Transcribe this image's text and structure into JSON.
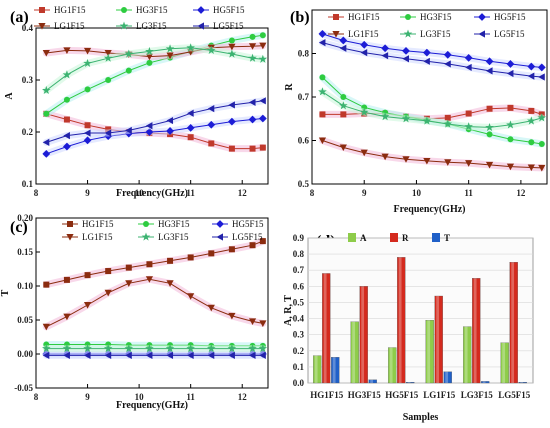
{
  "chart_data": [
    {
      "panel": "(a)",
      "type": "line",
      "xlabel": "Frequency(GHz)",
      "ylabel": "A",
      "xlim": [
        8,
        12.5
      ],
      "ylim": [
        0.1,
        0.4
      ],
      "xticks": [
        8,
        9,
        10,
        11,
        12
      ],
      "yticks": [
        0.1,
        0.2,
        0.3,
        0.4
      ],
      "ytick_labels": [
        "0.1",
        "0.2",
        "0.3",
        "0.4"
      ],
      "legend": "top",
      "series": [
        {
          "name": "HG1F15",
          "color": "#c0392b",
          "marker": "square",
          "glow": "#f3b8d8",
          "x": [
            8.2,
            8.6,
            9.0,
            9.4,
            9.8,
            10.2,
            10.6,
            11.0,
            11.4,
            11.8,
            12.2,
            12.4
          ],
          "y": [
            0.235,
            0.224,
            0.213,
            0.205,
            0.2,
            0.198,
            0.196,
            0.19,
            0.178,
            0.168,
            0.168,
            0.17
          ]
        },
        {
          "name": "HG3F15",
          "color": "#2ecc40",
          "marker": "circle",
          "glow": "#b7f0f0",
          "x": [
            8.2,
            8.6,
            9.0,
            9.4,
            9.8,
            10.2,
            10.6,
            11.0,
            11.4,
            11.8,
            12.2,
            12.4
          ],
          "y": [
            0.235,
            0.262,
            0.282,
            0.3,
            0.318,
            0.333,
            0.343,
            0.355,
            0.366,
            0.376,
            0.383,
            0.386
          ]
        },
        {
          "name": "HG5F15",
          "color": "#1c1cd6",
          "marker": "diamond",
          "glow": "#d0d8ff",
          "x": [
            8.2,
            8.6,
            9.0,
            9.4,
            9.8,
            10.2,
            10.6,
            11.0,
            11.4,
            11.8,
            12.2,
            12.4
          ],
          "y": [
            0.158,
            0.172,
            0.184,
            0.192,
            0.197,
            0.2,
            0.202,
            0.208,
            0.214,
            0.22,
            0.224,
            0.226
          ]
        },
        {
          "name": "LG1F15",
          "color": "#8b2c0f",
          "marker": "triangle-down",
          "glow": "#f3b8d8",
          "x": [
            8.2,
            8.6,
            9.0,
            9.4,
            9.8,
            10.2,
            10.6,
            11.0,
            11.4,
            11.8,
            12.2,
            12.4
          ],
          "y": [
            0.352,
            0.357,
            0.356,
            0.352,
            0.349,
            0.345,
            0.347,
            0.354,
            0.362,
            0.364,
            0.365,
            0.366
          ]
        },
        {
          "name": "LG3F15",
          "color": "#3cb371",
          "marker": "star",
          "glow": "#c8f5d8",
          "x": [
            8.2,
            8.6,
            9.0,
            9.4,
            9.8,
            10.2,
            10.6,
            11.0,
            11.4,
            11.8,
            12.2,
            12.4
          ],
          "y": [
            0.28,
            0.31,
            0.332,
            0.342,
            0.35,
            0.355,
            0.36,
            0.362,
            0.357,
            0.35,
            0.342,
            0.34
          ]
        },
        {
          "name": "LG5F15",
          "color": "#2222aa",
          "marker": "triangle-left",
          "glow": "#d0d8ff",
          "x": [
            8.2,
            8.6,
            9.0,
            9.4,
            9.8,
            10.2,
            10.6,
            11.0,
            11.4,
            11.8,
            12.2,
            12.4
          ],
          "y": [
            0.18,
            0.193,
            0.198,
            0.198,
            0.203,
            0.212,
            0.222,
            0.236,
            0.245,
            0.252,
            0.257,
            0.26
          ]
        }
      ]
    },
    {
      "panel": "(b)",
      "type": "line",
      "xlabel": "Frequency(GHz)",
      "ylabel": "R",
      "xlim": [
        8,
        12.5
      ],
      "ylim": [
        0.5,
        0.9
      ],
      "xticks": [
        8,
        9,
        10,
        11,
        12
      ],
      "yticks": [
        0.5,
        0.6,
        0.7,
        0.8
      ],
      "ytick_labels": [
        "0.5",
        "0.6",
        "0.7",
        "0.8"
      ],
      "legend": "top",
      "series": [
        {
          "name": "HG1F15",
          "color": "#c0392b",
          "marker": "square",
          "glow": "#f3b8d8",
          "x": [
            8.2,
            8.6,
            9.0,
            9.4,
            9.8,
            10.2,
            10.6,
            11.0,
            11.4,
            11.8,
            12.2,
            12.4
          ],
          "y": [
            0.66,
            0.66,
            0.662,
            0.662,
            0.655,
            0.65,
            0.652,
            0.662,
            0.673,
            0.675,
            0.668,
            0.66
          ]
        },
        {
          "name": "HG3F15",
          "color": "#2ecc40",
          "marker": "circle",
          "glow": "#b7f0f0",
          "x": [
            8.2,
            8.6,
            9.0,
            9.4,
            9.8,
            10.2,
            10.6,
            11.0,
            11.4,
            11.8,
            12.2,
            12.4
          ],
          "y": [
            0.745,
            0.7,
            0.676,
            0.664,
            0.655,
            0.646,
            0.638,
            0.626,
            0.614,
            0.603,
            0.596,
            0.592
          ]
        },
        {
          "name": "HG5F15",
          "color": "#1c1cd6",
          "marker": "diamond",
          "glow": "#d0d8ff",
          "x": [
            8.2,
            8.6,
            9.0,
            9.4,
            9.8,
            10.2,
            10.6,
            11.0,
            11.4,
            11.8,
            12.2,
            12.4
          ],
          "y": [
            0.845,
            0.83,
            0.82,
            0.812,
            0.806,
            0.802,
            0.797,
            0.79,
            0.782,
            0.776,
            0.77,
            0.768
          ]
        },
        {
          "name": "LG1F15",
          "color": "#8b2c0f",
          "marker": "triangle-down",
          "glow": "#f3b8d8",
          "x": [
            8.2,
            8.6,
            9.0,
            9.4,
            9.8,
            10.2,
            10.6,
            11.0,
            11.4,
            11.8,
            12.2,
            12.4
          ],
          "y": [
            0.6,
            0.584,
            0.572,
            0.563,
            0.557,
            0.553,
            0.55,
            0.548,
            0.544,
            0.54,
            0.538,
            0.537
          ]
        },
        {
          "name": "LG3F15",
          "color": "#3cb371",
          "marker": "star",
          "glow": "#c8f5d8",
          "x": [
            8.2,
            8.6,
            9.0,
            9.4,
            9.8,
            10.2,
            10.6,
            11.0,
            11.4,
            11.8,
            12.2,
            12.4
          ],
          "y": [
            0.712,
            0.68,
            0.665,
            0.655,
            0.65,
            0.645,
            0.638,
            0.632,
            0.63,
            0.636,
            0.645,
            0.652
          ]
        },
        {
          "name": "LG5F15",
          "color": "#2222aa",
          "marker": "triangle-left",
          "glow": "#d0d8ff",
          "x": [
            8.2,
            8.6,
            9.0,
            9.4,
            9.8,
            10.2,
            10.6,
            11.0,
            11.4,
            11.8,
            12.2,
            12.4
          ],
          "y": [
            0.825,
            0.812,
            0.802,
            0.795,
            0.788,
            0.782,
            0.776,
            0.768,
            0.76,
            0.754,
            0.748,
            0.746
          ]
        }
      ]
    },
    {
      "panel": "(c)",
      "type": "line",
      "xlabel": "Frequency(GHz)",
      "ylabel": "T",
      "xlim": [
        8,
        12.5
      ],
      "ylim": [
        -0.05,
        0.2
      ],
      "xticks": [
        8,
        9,
        10,
        11,
        12
      ],
      "yticks": [
        -0.05,
        0.0,
        0.05,
        0.1,
        0.15,
        0.2
      ],
      "ytick_labels": [
        "-0.05",
        "0.00",
        "0.05",
        "0.10",
        "0.15",
        "0.20"
      ],
      "legend": "top",
      "series": [
        {
          "name": "HG1F15",
          "color": "#8b2c0f",
          "marker": "square",
          "glow": "#f3b8d8",
          "x": [
            8.2,
            8.6,
            9.0,
            9.4,
            9.8,
            10.2,
            10.6,
            11.0,
            11.4,
            11.8,
            12.2,
            12.4
          ],
          "y": [
            0.102,
            0.109,
            0.116,
            0.122,
            0.127,
            0.132,
            0.137,
            0.142,
            0.148,
            0.154,
            0.16,
            0.166
          ]
        },
        {
          "name": "HG3F15",
          "color": "#2ecc40",
          "marker": "circle",
          "glow": "#b7f0f0",
          "x": [
            8.2,
            8.6,
            9.0,
            9.4,
            9.8,
            10.2,
            10.6,
            11.0,
            11.4,
            11.8,
            12.2,
            12.4
          ],
          "y": [
            0.014,
            0.014,
            0.014,
            0.014,
            0.013,
            0.013,
            0.013,
            0.013,
            0.012,
            0.012,
            0.012,
            0.012
          ]
        },
        {
          "name": "HG5F15",
          "color": "#1c1cd6",
          "marker": "diamond",
          "glow": "#d0d8ff",
          "x": [
            8.2,
            8.6,
            9.0,
            9.4,
            9.8,
            10.2,
            10.6,
            11.0,
            11.4,
            11.8,
            12.2,
            12.4
          ],
          "y": [
            0.0,
            0.0,
            0.0,
            0.0,
            0.0,
            0.0,
            0.0,
            0.0,
            0.0,
            0.0,
            0.0,
            0.0
          ]
        },
        {
          "name": "LG1F15",
          "color": "#8b2c0f",
          "marker": "triangle-down",
          "glow": "#f3b8d8",
          "x": [
            8.2,
            8.6,
            9.0,
            9.4,
            9.8,
            10.2,
            10.6,
            11.0,
            11.4,
            11.8,
            12.2,
            12.4
          ],
          "y": [
            0.04,
            0.055,
            0.072,
            0.09,
            0.104,
            0.11,
            0.104,
            0.085,
            0.068,
            0.056,
            0.048,
            0.045
          ]
        },
        {
          "name": "LG3F15",
          "color": "#3cb371",
          "marker": "star",
          "glow": "#c8f5d8",
          "x": [
            8.2,
            8.6,
            9.0,
            9.4,
            9.8,
            10.2,
            10.6,
            11.0,
            11.4,
            11.8,
            12.2,
            12.4
          ],
          "y": [
            0.008,
            0.008,
            0.008,
            0.008,
            0.008,
            0.008,
            0.008,
            0.008,
            0.008,
            0.008,
            0.008,
            0.008
          ]
        },
        {
          "name": "LG5F15",
          "color": "#2222aa",
          "marker": "triangle-left",
          "glow": "#d0d8ff",
          "x": [
            8.2,
            8.6,
            9.0,
            9.4,
            9.8,
            10.2,
            10.6,
            11.0,
            11.4,
            11.8,
            12.2,
            12.4
          ],
          "y": [
            -0.002,
            -0.002,
            -0.002,
            -0.002,
            -0.002,
            -0.002,
            -0.002,
            -0.002,
            -0.002,
            -0.002,
            -0.002,
            -0.002
          ]
        }
      ]
    },
    {
      "panel": "(d)",
      "type": "bar",
      "xlabel": "Samples",
      "ylabel": "A, R, T",
      "ylim": [
        0,
        0.9
      ],
      "yticks": [
        0.0,
        0.1,
        0.2,
        0.3,
        0.4,
        0.5,
        0.6,
        0.7,
        0.8,
        0.9
      ],
      "ytick_labels": [
        "0.0",
        "0.1",
        "0.2",
        "0.3",
        "0.4",
        "0.5",
        "0.6",
        "0.7",
        "0.8",
        "0.9"
      ],
      "legend": "top-left",
      "categories": [
        "HG1F15",
        "HG3F15",
        "HG5F15",
        "LG1F15",
        "LG3F15",
        "LG5F15"
      ],
      "series": [
        {
          "name": "A",
          "color": "#8ecc4a",
          "values": [
            0.17,
            0.38,
            0.22,
            0.39,
            0.35,
            0.25
          ]
        },
        {
          "name": "R",
          "color": "#d42a1e",
          "values": [
            0.68,
            0.6,
            0.78,
            0.54,
            0.65,
            0.75
          ]
        },
        {
          "name": "T",
          "color": "#2060c8",
          "values": [
            0.16,
            0.02,
            0.005,
            0.07,
            0.01,
            0.005
          ]
        }
      ]
    }
  ]
}
